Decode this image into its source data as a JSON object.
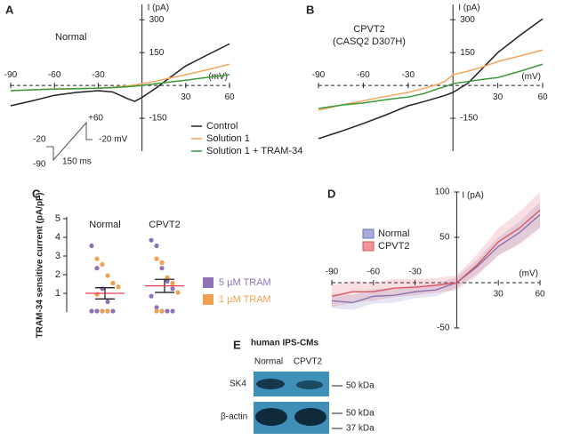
{
  "panel_labels": [
    "A",
    "B",
    "C",
    "D",
    "E"
  ],
  "chart_data": [
    {
      "type": "line",
      "annotation": "Normal",
      "xlabel": "(mV)",
      "ylabel": "I (pA)",
      "xlim": [
        -90,
        60
      ],
      "ylim": [
        -300,
        370
      ],
      "xticks": [
        -90,
        -60,
        -30,
        30,
        60
      ],
      "yticks": [
        -150,
        150,
        300
      ],
      "x": [
        -90,
        -75,
        -60,
        -45,
        -30,
        -20,
        -10,
        -5,
        0,
        10,
        20,
        30,
        45,
        60
      ],
      "series": [
        {
          "name": "Control",
          "color": "#222222",
          "values": [
            -93,
            -70,
            -45,
            -32,
            -24,
            -30,
            -60,
            -73,
            -55,
            -10,
            40,
            89,
            140,
            190
          ]
        },
        {
          "name": "Solution 1",
          "color": "#f5a55a",
          "values": [
            -24,
            -20,
            -16,
            -14,
            -12,
            -8,
            -2,
            2,
            8,
            20,
            35,
            49,
            72,
            97
          ]
        },
        {
          "name": "Solution 1 + TRAM-34",
          "color": "#3a9a3a",
          "values": [
            -24,
            -20,
            -17,
            -15,
            -12,
            -10,
            -6,
            -3,
            0,
            8,
            16,
            24,
            37,
            49
          ]
        }
      ],
      "protocol_labels": [
        "+60",
        "-20 mV",
        "-20",
        "-90",
        "150 ms"
      ]
    },
    {
      "type": "line",
      "annotation": "CPVT2",
      "subannotation": "(CASQ2 D307H)",
      "xlabel": "(mV)",
      "ylabel": "I (pA)",
      "xlim": [
        -90,
        60
      ],
      "ylim": [
        -300,
        370
      ],
      "xticks": [
        -90,
        -60,
        -30,
        30,
        60
      ],
      "yticks": [
        -150,
        150,
        300
      ],
      "x": [
        -90,
        -75,
        -60,
        -45,
        -30,
        -20,
        -10,
        -5,
        0,
        10,
        20,
        30,
        45,
        60
      ],
      "series": [
        {
          "color": "#222222",
          "values": [
            -243,
            -210,
            -174,
            -135,
            -93,
            -75,
            -55,
            -45,
            -32,
            10,
            80,
            150,
            230,
            304
          ]
        },
        {
          "color": "#f5a55a",
          "values": [
            -113,
            -90,
            -70,
            -50,
            -32,
            -15,
            5,
            20,
            49,
            65,
            85,
            109,
            135,
            162
          ]
        },
        {
          "color": "#3a9a3a",
          "values": [
            -105,
            -90,
            -80,
            -65,
            -53,
            -38,
            -15,
            -5,
            8,
            18,
            28,
            36,
            65,
            97
          ]
        }
      ]
    },
    {
      "type": "dot",
      "ylabel": "TRAM-34 sensitive current (pA/pF)",
      "ylim": [
        0,
        5
      ],
      "yticks": [
        1,
        2,
        3,
        4,
        5
      ],
      "categories": [
        "Normal",
        "CPVT2"
      ],
      "series": [
        {
          "name": "5 µM TRAM",
          "color": "#8e72b8",
          "values": [
            [
              3.5,
              2.3,
              1.2,
              0.5,
              0,
              0,
              0,
              0,
              0
            ],
            [
              3.8,
              3.5,
              2.3,
              1.6,
              1.2,
              0.8,
              0.2,
              0,
              0,
              0
            ]
          ]
        },
        {
          "name": "1 µM TRAM",
          "color": "#f0a050",
          "values": [
            [
              2.8,
              2.5,
              1.9,
              1.5,
              1.3,
              0.9,
              0,
              0
            ],
            [
              2.8,
              2.6,
              1.8,
              1.5,
              1,
              0,
              0
            ]
          ]
        }
      ],
      "mean": [
        1.0,
        1.4
      ],
      "sem": [
        0.3,
        0.35
      ]
    },
    {
      "type": "band",
      "xlabel": "(mV)",
      "ylabel": "I (pA)",
      "xlim": [
        -90,
        60
      ],
      "ylim": [
        -50,
        100
      ],
      "xticks": [
        -90,
        -60,
        -30,
        30,
        60
      ],
      "yticks": [
        -50,
        50,
        100
      ],
      "x": [
        -90,
        -75,
        -60,
        -45,
        -30,
        -15,
        0,
        15,
        30,
        45,
        60
      ],
      "series": [
        {
          "name": "Normal",
          "color": "#6f73c0",
          "values": [
            -20,
            -22,
            -15,
            -14,
            -10,
            -8,
            0,
            18,
            40,
            55,
            75
          ],
          "errors": [
            8,
            8,
            8,
            8,
            7,
            7,
            6,
            8,
            10,
            12,
            14
          ]
        },
        {
          "name": "CPVT2",
          "color": "#e0505a",
          "values": [
            -15,
            -10,
            -10,
            -6,
            -5,
            -3,
            0,
            20,
            45,
            60,
            80
          ],
          "errors": [
            12,
            12,
            10,
            10,
            9,
            8,
            8,
            12,
            15,
            18,
            20
          ]
        }
      ]
    }
  ],
  "blot": {
    "title": "human IPS-CMs",
    "lanes": [
      "Normal",
      "CPVT2"
    ],
    "rows": [
      "SK4",
      "β-actin"
    ],
    "markers": [
      "50 kDa",
      "50 kDa",
      "37 kDa"
    ]
  }
}
